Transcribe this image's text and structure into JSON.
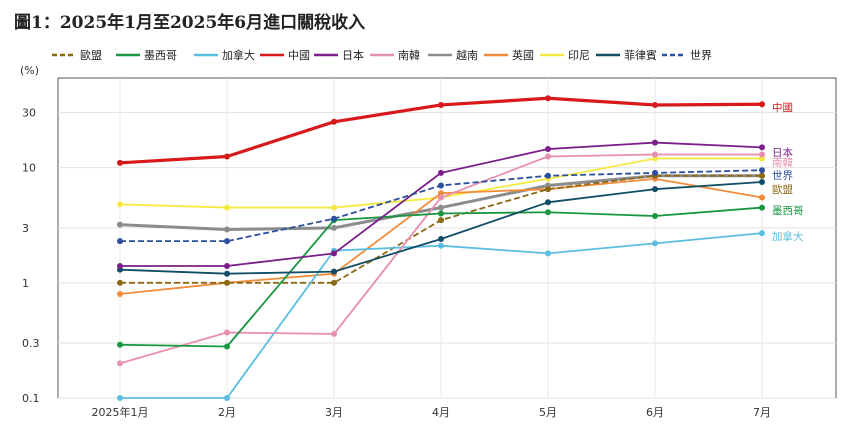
{
  "title": "圖1：2025年1月至2025年6月進口關稅收入",
  "chart_data": {
    "type": "line",
    "title": "圖1：2025年1月至2025年6月進口關稅收入",
    "ylabel": "(%)",
    "yscale": "log",
    "ylim": [
      0.1,
      60
    ],
    "yticks": [
      0.1,
      0.3,
      1,
      3,
      10,
      30
    ],
    "ytick_labels": [
      "0.1",
      "0.3",
      "1",
      "3",
      "10",
      "30"
    ],
    "categories": [
      "2025年1月",
      "2月",
      "3月",
      "4月",
      "5月",
      "6月",
      "7月"
    ],
    "grid": true,
    "legend_position": "top",
    "series": [
      {
        "name": "歐盟",
        "color": "#8B6914",
        "dash": true,
        "values": [
          1.0,
          1.0,
          1.0,
          3.5,
          6.5,
          8.5,
          8.5
        ],
        "end_label": "歐盟"
      },
      {
        "name": "墨西哥",
        "color": "#1a9641",
        "dash": false,
        "values": [
          0.29,
          0.28,
          3.5,
          4.0,
          4.1,
          3.8,
          4.5
        ],
        "end_label": "墨西哥"
      },
      {
        "name": "加拿大",
        "color": "#5bbde0",
        "dash": false,
        "values": [
          0.1,
          0.1,
          1.9,
          2.1,
          1.8,
          2.2,
          2.7
        ],
        "end_label": "加拿大"
      },
      {
        "name": "中國",
        "color": "#d7191c",
        "dash": false,
        "values": [
          11.0,
          12.5,
          25.0,
          35.0,
          40.0,
          35.0,
          35.5
        ],
        "end_label": "中國"
      },
      {
        "name": "日本",
        "color": "#7b1f8a",
        "dash": false,
        "values": [
          1.4,
          1.4,
          1.8,
          9.0,
          14.5,
          16.5,
          15.0
        ],
        "end_label": "日本"
      },
      {
        "name": "南韓",
        "color": "#e88fb0",
        "dash": false,
        "values": [
          0.2,
          0.37,
          0.36,
          5.5,
          12.5,
          13.0,
          13.0
        ],
        "end_label": "南韓"
      },
      {
        "name": "越南",
        "color": "#8c8c8c",
        "dash": false,
        "values": [
          3.2,
          2.9,
          3.0,
          4.5,
          7.0,
          8.5,
          8.5
        ],
        "end_label": ""
      },
      {
        "name": "英國",
        "color": "#f08c3c",
        "dash": false,
        "values": [
          0.8,
          1.0,
          1.2,
          6.0,
          6.5,
          8.0,
          5.5
        ],
        "end_label": ""
      },
      {
        "name": "印尼",
        "color": "#f5e942",
        "dash": false,
        "values": [
          4.8,
          4.5,
          4.5,
          5.5,
          8.0,
          12.0,
          12.0
        ],
        "end_label": ""
      },
      {
        "name": "菲律賓",
        "color": "#114d66",
        "dash": false,
        "values": [
          1.3,
          1.2,
          1.25,
          2.4,
          5.0,
          6.5,
          7.5
        ],
        "end_label": ""
      },
      {
        "name": "世界",
        "color": "#2c4f9e",
        "dash": true,
        "values": [
          2.3,
          2.3,
          3.6,
          7.0,
          8.5,
          9.0,
          9.5
        ],
        "end_label": "世界"
      }
    ]
  }
}
